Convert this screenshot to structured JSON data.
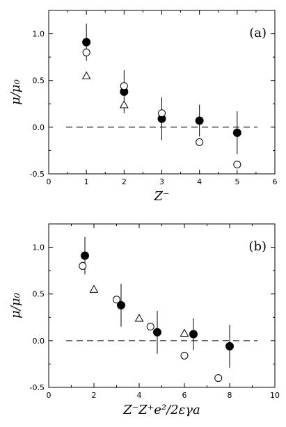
{
  "chart_data": [
    {
      "type": "scatter",
      "panel_label": "(a)",
      "xlabel": "Z⁻",
      "ylabel": "μ/μ₀",
      "xlim": [
        0,
        6
      ],
      "ylim": [
        -0.5,
        1.25
      ],
      "xticks": [
        0,
        1,
        2,
        3,
        4,
        5,
        6
      ],
      "yticks": [
        -0.5,
        0.0,
        0.5,
        1.0
      ],
      "xtick_labels": [
        "0",
        "1",
        "2",
        "3",
        "4",
        "5",
        "6"
      ],
      "ytick_labels": [
        "-0.5",
        "0.0",
        "0.5",
        "1.0"
      ],
      "reference_line": {
        "y": 0,
        "style": "dashed"
      },
      "series": [
        {
          "marker": "filled-circle",
          "points": [
            {
              "x": 1,
              "y": 0.91,
              "err": 0.2
            },
            {
              "x": 2,
              "y": 0.38,
              "err": 0.23
            },
            {
              "x": 3,
              "y": 0.09,
              "err": 0.23
            },
            {
              "x": 4,
              "y": 0.07,
              "err": 0.17
            },
            {
              "x": 5,
              "y": -0.06,
              "err": 0.23
            }
          ]
        },
        {
          "marker": "open-circle",
          "points": [
            {
              "x": 1,
              "y": 0.8
            },
            {
              "x": 2,
              "y": 0.44
            },
            {
              "x": 3,
              "y": 0.15
            },
            {
              "x": 4,
              "y": -0.16
            },
            {
              "x": 5,
              "y": -0.4
            }
          ]
        },
        {
          "marker": "open-triangle",
          "points": [
            {
              "x": 1,
              "y": 0.55
            },
            {
              "x": 2,
              "y": 0.24
            }
          ]
        }
      ]
    },
    {
      "type": "scatter",
      "panel_label": "(b)",
      "xlabel": "Z⁻Z⁺e²/2εγa",
      "ylabel": "μ/μ₀",
      "xlim": [
        0,
        10
      ],
      "ylim": [
        -0.5,
        1.25
      ],
      "xticks": [
        0,
        2,
        4,
        6,
        8,
        10
      ],
      "yticks": [
        -0.5,
        0.0,
        0.5,
        1.0
      ],
      "xtick_labels": [
        "0",
        "2",
        "4",
        "6",
        "8",
        "10"
      ],
      "ytick_labels": [
        "-0.5",
        "0.0",
        "0.5",
        "1.0"
      ],
      "reference_line": {
        "y": 0,
        "style": "dashed"
      },
      "series": [
        {
          "marker": "filled-circle",
          "points": [
            {
              "x": 1.6,
              "y": 0.91,
              "err": 0.2
            },
            {
              "x": 3.2,
              "y": 0.38,
              "err": 0.23
            },
            {
              "x": 4.8,
              "y": 0.09,
              "err": 0.23
            },
            {
              "x": 6.4,
              "y": 0.07,
              "err": 0.17
            },
            {
              "x": 8.0,
              "y": -0.06,
              "err": 0.23
            }
          ]
        },
        {
          "marker": "open-circle",
          "points": [
            {
              "x": 1.5,
              "y": 0.8
            },
            {
              "x": 3.0,
              "y": 0.44
            },
            {
              "x": 4.5,
              "y": 0.15
            },
            {
              "x": 6.0,
              "y": -0.16
            },
            {
              "x": 7.5,
              "y": -0.4
            }
          ]
        },
        {
          "marker": "open-triangle",
          "points": [
            {
              "x": 2.0,
              "y": 0.55
            },
            {
              "x": 4.0,
              "y": 0.24
            },
            {
              "x": 6.0,
              "y": 0.08
            }
          ]
        }
      ]
    }
  ]
}
